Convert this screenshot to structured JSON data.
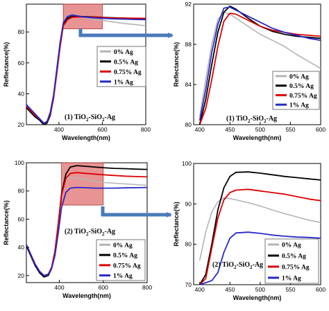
{
  "chart_data": [
    {
      "type": "line",
      "id": "p1",
      "xlabel": "Wavelength(nm)",
      "ylabel": "Reflectance(%)",
      "xlim": [
        250,
        800
      ],
      "ylim": [
        20,
        98
      ],
      "xticks": [
        400,
        600,
        800
      ],
      "yticks": [
        20,
        40,
        60,
        80
      ],
      "annotation": {
        "pre": "(1) TiO",
        "sub1": "2",
        "mid": "-SiO",
        "sub2": "2",
        "post": "-Ag"
      },
      "zoom_box": {
        "x": [
          420,
          600
        ],
        "y": [
          82,
          98
        ]
      },
      "legend": [
        "0% Ag",
        "0.5% Ag",
        "0.75% Ag",
        "1% Ag"
      ],
      "series": [
        {
          "name": "0% Ag",
          "color": "#b4b4b4",
          "x": [
            250,
            270,
            290,
            310,
            330,
            345,
            360,
            375,
            390,
            405,
            420,
            440,
            460,
            500,
            550,
            600,
            650,
            700,
            750,
            800
          ],
          "y": [
            32,
            29,
            26,
            24,
            21,
            22,
            27,
            38,
            55,
            72,
            86,
            90,
            91,
            90,
            88.5,
            87.5,
            86.5,
            85.5,
            84.8,
            84
          ]
        },
        {
          "name": "0.5% Ag",
          "color": "#000000",
          "x": [
            250,
            270,
            290,
            310,
            330,
            345,
            360,
            375,
            390,
            405,
            420,
            440,
            460,
            500,
            550,
            600,
            650,
            700,
            750,
            800
          ],
          "y": [
            31,
            28,
            25,
            23,
            20,
            21,
            26,
            37,
            54,
            71,
            85,
            89,
            90,
            90,
            89.8,
            89.5,
            89.2,
            89,
            88.8,
            88.7
          ]
        },
        {
          "name": "0.75% Ag",
          "color": "#dd0000",
          "x": [
            250,
            270,
            290,
            310,
            330,
            345,
            360,
            375,
            390,
            405,
            420,
            440,
            460,
            500,
            550,
            600,
            650,
            700,
            750,
            800
          ],
          "y": [
            32,
            29,
            26,
            24,
            21,
            22,
            27,
            37,
            53,
            70,
            84,
            88,
            89.5,
            89.8,
            89.6,
            89.3,
            89.1,
            89,
            88.9,
            88.8
          ]
        },
        {
          "name": "1% Ag",
          "color": "#2828c8",
          "x": [
            250,
            270,
            290,
            310,
            330,
            345,
            360,
            375,
            390,
            405,
            420,
            440,
            460,
            500,
            550,
            600,
            650,
            700,
            750,
            800
          ],
          "y": [
            33,
            30,
            27,
            24,
            21,
            22,
            28,
            39,
            56,
            73,
            86,
            90,
            91,
            90,
            89.2,
            88.8,
            88.5,
            88.3,
            88.1,
            88
          ]
        }
      ]
    },
    {
      "type": "line",
      "id": "p1zoom",
      "xlabel": "Wavelength(nm)",
      "ylabel": "Reflectance(%)",
      "xlim": [
        390,
        600
      ],
      "ylim": [
        80,
        92
      ],
      "xticks": [
        400,
        450,
        500,
        550,
        600
      ],
      "yticks": [
        80,
        84,
        88,
        92
      ],
      "annotation": {
        "pre": "(1) TiO",
        "sub1": "2",
        "mid": "-SiO",
        "sub2": "2",
        "post": "-Ag"
      },
      "legend": [
        "0% Ag",
        "0.5% Ag",
        "0.75% Ag",
        "1% Ag"
      ],
      "series": [
        {
          "name": "0% Ag",
          "color": "#b4b4b4",
          "x": [
            400,
            410,
            420,
            430,
            440,
            450,
            460,
            480,
            500,
            520,
            540,
            560,
            580,
            600
          ],
          "y": [
            80.8,
            84.5,
            88,
            90.5,
            91.2,
            91,
            90.6,
            89.8,
            89,
            88.4,
            87.8,
            87,
            86.3,
            85.6
          ]
        },
        {
          "name": "0.5% Ag",
          "color": "#000000",
          "x": [
            400,
            410,
            420,
            430,
            440,
            450,
            460,
            480,
            500,
            520,
            540,
            560,
            580,
            600
          ],
          "y": [
            80,
            82.5,
            86,
            89.2,
            91.2,
            91.8,
            91.5,
            90.6,
            89.8,
            89.3,
            89,
            88.8,
            88.7,
            88.6
          ]
        },
        {
          "name": "0.75% Ag",
          "color": "#dd0000",
          "x": [
            400,
            410,
            420,
            430,
            440,
            450,
            460,
            480,
            500,
            520,
            540,
            560,
            580,
            600
          ],
          "y": [
            80,
            81.6,
            84.5,
            87.8,
            90.3,
            91.1,
            91,
            90.4,
            89.8,
            89.4,
            89.2,
            89,
            88.9,
            88.8
          ]
        },
        {
          "name": "1% Ag",
          "color": "#2828c8",
          "x": [
            400,
            410,
            420,
            430,
            440,
            450,
            460,
            480,
            500,
            520,
            540,
            560,
            580,
            600
          ],
          "y": [
            80.4,
            83.5,
            87.2,
            90,
            91.6,
            91.7,
            91.4,
            90.8,
            90.2,
            89.6,
            89.2,
            88.9,
            88.6,
            88.4
          ]
        }
      ]
    },
    {
      "type": "line",
      "id": "p2",
      "xlabel": "Wavelength(nm)",
      "ylabel": "Reflectance(%)",
      "xlim": [
        250,
        800
      ],
      "ylim": [
        15,
        100
      ],
      "xticks": [
        400,
        600,
        800
      ],
      "yticks": [
        20,
        40,
        60,
        80,
        100
      ],
      "annotation": {
        "pre": "(2) TiO",
        "sub1": "2",
        "mid": "-SiO",
        "sub2": "2",
        "post": "-Ag"
      },
      "zoom_box": {
        "x": [
          410,
          600
        ],
        "y": [
          70,
          100
        ]
      },
      "legend": [
        "0% Ag",
        "0.5% Ag",
        "0.75% Ag",
        "1% Ag"
      ],
      "series": [
        {
          "name": "0% Ag",
          "color": "#b4b4b4",
          "x": [
            250,
            270,
            290,
            310,
            330,
            350,
            365,
            380,
            395,
            410,
            430,
            450,
            480,
            520,
            560,
            600,
            650,
            700,
            750,
            800
          ],
          "y": [
            42,
            35,
            28,
            23,
            20,
            21,
            26,
            38,
            58,
            78,
            88,
            90,
            89,
            88,
            87,
            86,
            85.5,
            85,
            84.5,
            84
          ]
        },
        {
          "name": "0.5% Ag",
          "color": "#000000",
          "x": [
            250,
            270,
            290,
            310,
            330,
            350,
            365,
            380,
            395,
            410,
            430,
            450,
            480,
            520,
            560,
            600,
            650,
            700,
            750,
            800
          ],
          "y": [
            41,
            34,
            27,
            22,
            19,
            20,
            25,
            36,
            56,
            78,
            92,
            97,
            98,
            97.5,
            97,
            96.5,
            96,
            95.8,
            95.5,
            95.3
          ]
        },
        {
          "name": "0.75% Ag",
          "color": "#dd0000",
          "x": [
            250,
            270,
            290,
            310,
            330,
            350,
            365,
            380,
            395,
            410,
            430,
            450,
            480,
            520,
            560,
            600,
            650,
            700,
            750,
            800
          ],
          "y": [
            42,
            35,
            28,
            23,
            20,
            21,
            26,
            37,
            56,
            77,
            89,
            92.5,
            93,
            92.5,
            92,
            91.5,
            91,
            90.5,
            90.2,
            90
          ]
        },
        {
          "name": "1% Ag",
          "color": "#2828c8",
          "x": [
            250,
            270,
            290,
            310,
            330,
            350,
            365,
            380,
            395,
            410,
            430,
            450,
            480,
            520,
            560,
            600,
            650,
            700,
            750,
            800
          ],
          "y": [
            42,
            35,
            28,
            23,
            20,
            21,
            25,
            34,
            50,
            68,
            79,
            82,
            82.5,
            82.3,
            82,
            82,
            82,
            82.2,
            82.3,
            82.5
          ]
        }
      ]
    },
    {
      "type": "line",
      "id": "p2zoom",
      "xlabel": "Wavelength(nm)",
      "ylabel": "Reflectance(%)",
      "xlim": [
        390,
        600
      ],
      "ylim": [
        70,
        100
      ],
      "xticks": [
        400,
        450,
        500,
        550,
        600
      ],
      "yticks": [
        70,
        80,
        90,
        100
      ],
      "annotation": {
        "pre": "(2) TiO",
        "sub1": "2",
        "mid": "-SiO",
        "sub2": "2",
        "post": "-Ag"
      },
      "legend": [
        "0% Ag",
        "0.5% Ag",
        "0.75% Ag",
        "1% Ag"
      ],
      "series": [
        {
          "name": "0% Ag",
          "color": "#b4b4b4",
          "x": [
            400,
            410,
            420,
            430,
            440,
            450,
            460,
            480,
            500,
            520,
            540,
            560,
            580,
            600
          ],
          "y": [
            76,
            83,
            88,
            90.5,
            91.5,
            91.3,
            91,
            90.3,
            89.5,
            88.5,
            87.6,
            86.8,
            86,
            85.4
          ]
        },
        {
          "name": "0.5% Ag",
          "color": "#000000",
          "x": [
            400,
            410,
            420,
            430,
            440,
            450,
            460,
            480,
            500,
            520,
            540,
            560,
            580,
            600
          ],
          "y": [
            70,
            72.5,
            80,
            88.5,
            94,
            96.8,
            97.8,
            97.9,
            97.6,
            97.2,
            96.8,
            96.5,
            96.2,
            95.9
          ]
        },
        {
          "name": "0.75% Ag",
          "color": "#dd0000",
          "x": [
            400,
            410,
            420,
            430,
            440,
            450,
            460,
            480,
            500,
            520,
            540,
            560,
            580,
            600
          ],
          "y": [
            70,
            71.5,
            79,
            86.5,
            91,
            92.8,
            93.4,
            93.6,
            93.2,
            92.8,
            92.4,
            91.8,
            91.2,
            90.8
          ]
        },
        {
          "name": "1% Ag",
          "color": "#2828c8",
          "x": [
            400,
            410,
            420,
            430,
            440,
            450,
            460,
            480,
            500,
            520,
            540,
            560,
            580,
            600
          ],
          "y": [
            70,
            70.5,
            71,
            73,
            78,
            81.5,
            82.8,
            83,
            82.7,
            82.3,
            82,
            81.8,
            81.7,
            81.5
          ]
        }
      ]
    }
  ]
}
